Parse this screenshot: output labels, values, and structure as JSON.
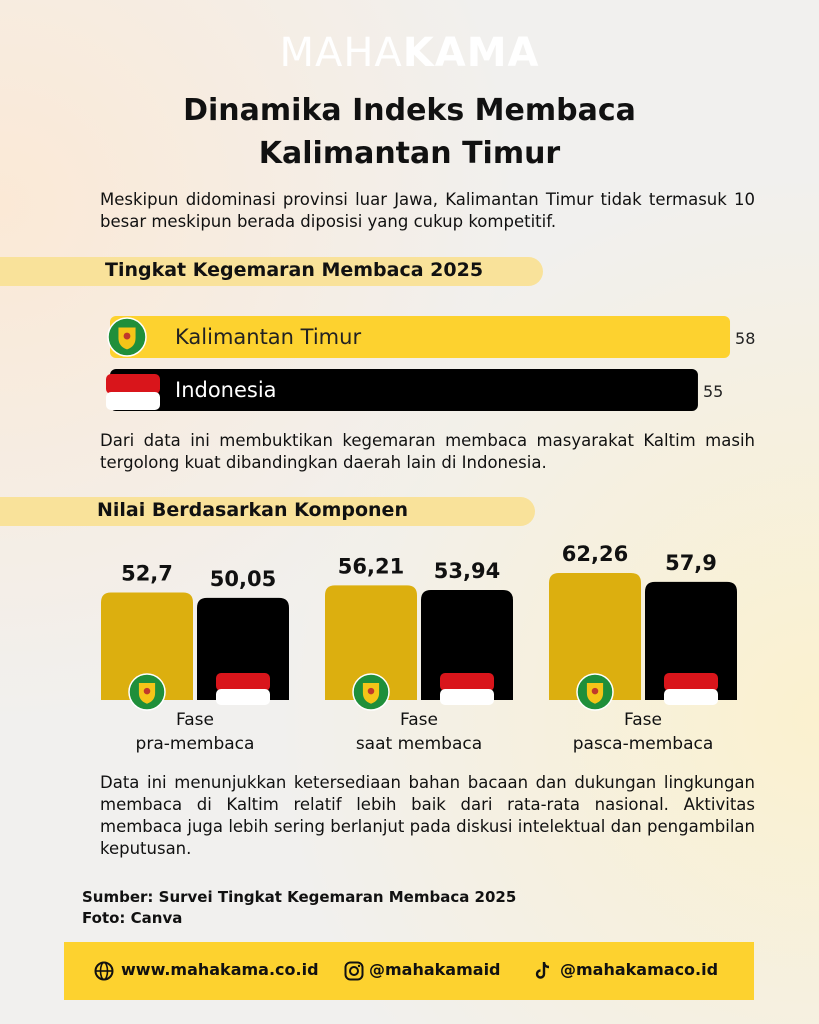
{
  "brand": {
    "left": "MAHA",
    "right": "KAMA"
  },
  "title": [
    "Dinamika Indeks Membaca",
    "Kalimantan Timur"
  ],
  "intro": "Meskipun didominasi provinsi luar Jawa, Kalimantan Timur tidak termasuk 10 besar meskipun berada diposisi yang cukup kompetitif.",
  "chart_data": [
    {
      "type": "hbar",
      "title": "Tingkat Kegemaran Membaca 2025",
      "categories": [
        "Kalimantan Timur",
        "Indonesia"
      ],
      "values": [
        58,
        55
      ],
      "colors": [
        "#fdd22f",
        "#000000"
      ]
    },
    {
      "type": "bar",
      "title": "Nilai Berdasarkan Komponen",
      "categories": [
        "Fase\npra-membaca",
        "Fase\nsaat membaca",
        "Fase\npasca-membaca"
      ],
      "series": [
        {
          "color": "#dcaf0f",
          "values": [
            52.7,
            56.21,
            62.26
          ],
          "value_labels": [
            "52,7",
            "56,21",
            "62,26"
          ]
        },
        {
          "color": "#000000",
          "values": [
            50.05,
            53.94,
            57.9
          ],
          "value_labels": [
            "50,05",
            "53,94",
            "57,9"
          ]
        }
      ]
    }
  ],
  "findings": [
    "Dari data ini membuktikan kegemaran membaca masyarakat Kaltim masih tergolong kuat dibandingkan daerah lain di Indonesia.",
    "Data ini menunjukkan ketersediaan bahan bacaan dan dukungan lingkungan membaca di Kaltim relatif lebih baik dari rata-rata nasional. Aktivitas membaca juga lebih sering berlanjut pada diskusi intelektual dan pengambilan keputusan."
  ],
  "sources": [
    "Sumber: Survei Tingkat Kegemaran Membaca 2025",
    "Foto: Canva"
  ],
  "footer": [
    "www.mahakama.co.id",
    "@mahakamaid",
    "@mahakamaco.id"
  ]
}
